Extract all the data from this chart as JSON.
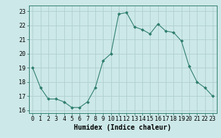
{
  "x": [
    0,
    1,
    2,
    3,
    4,
    5,
    6,
    7,
    8,
    9,
    10,
    11,
    12,
    13,
    14,
    15,
    16,
    17,
    18,
    19,
    20,
    21,
    22,
    23
  ],
  "y": [
    19.0,
    17.6,
    16.8,
    16.8,
    16.6,
    16.2,
    16.2,
    16.6,
    17.6,
    19.5,
    20.0,
    22.8,
    22.9,
    21.9,
    21.7,
    21.4,
    22.1,
    21.6,
    21.5,
    20.9,
    19.1,
    18.0,
    17.6,
    17.0
  ],
  "line_color": "#2e7d6e",
  "marker": "D",
  "marker_size": 2,
  "bg_color": "#cce8e8",
  "grid_color": "#b0cece",
  "xlabel": "Humidex (Indice chaleur)",
  "xlabel_fontsize": 7,
  "tick_fontsize": 6,
  "ylim": [
    15.8,
    23.4
  ],
  "yticks": [
    16,
    17,
    18,
    19,
    20,
    21,
    22,
    23
  ],
  "xlim": [
    -0.5,
    23.5
  ],
  "xticks": [
    0,
    1,
    2,
    3,
    4,
    5,
    6,
    7,
    8,
    9,
    10,
    11,
    12,
    13,
    14,
    15,
    16,
    17,
    18,
    19,
    20,
    21,
    22,
    23
  ]
}
